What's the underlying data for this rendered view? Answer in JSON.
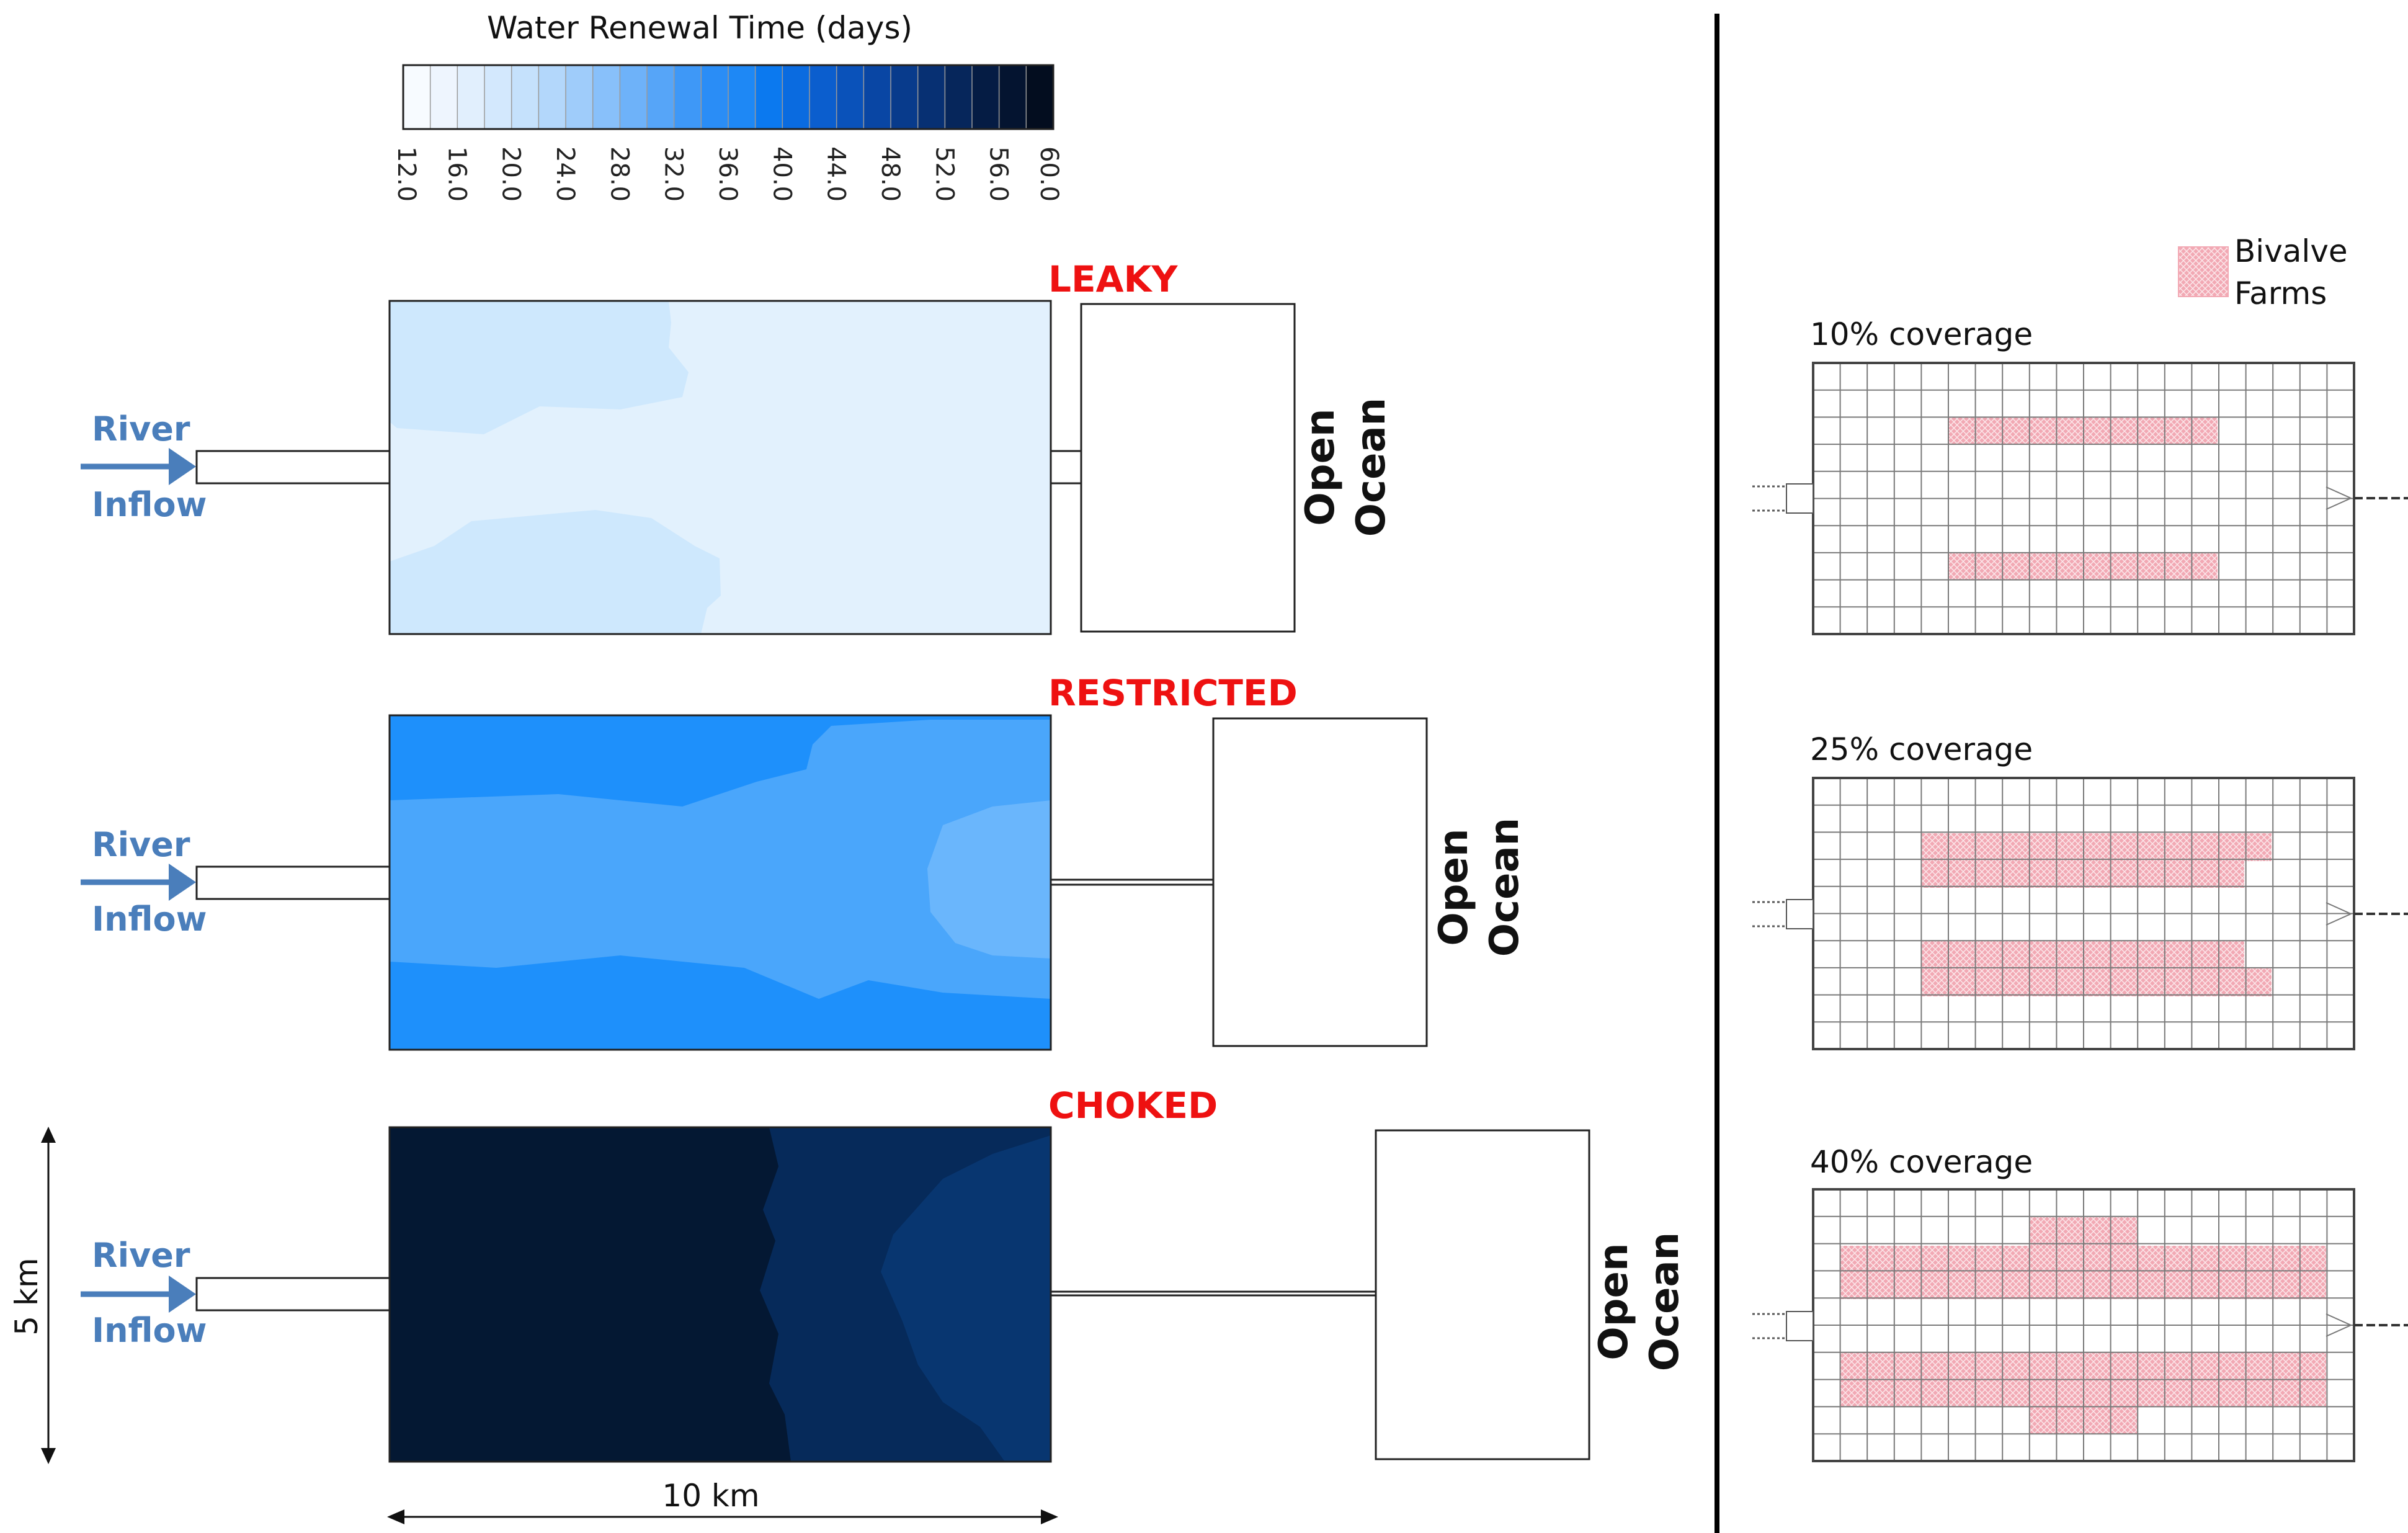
{
  "colorbar": {
    "title": "Water Renewal Time (days)",
    "ticks": [
      "12.0",
      "16.0",
      "20.0",
      "24.0",
      "28.0",
      "32.0",
      "36.0",
      "40.0",
      "44.0",
      "48.0",
      "52.0",
      "56.0",
      "60.0"
    ],
    "colors": [
      "#f7fbff",
      "#eef5fe",
      "#e1effd",
      "#d3e8fd",
      "#c5e1fc",
      "#b3d7fb",
      "#9fccfa",
      "#88c0fa",
      "#6eb2f9",
      "#56a5f8",
      "#3e98f7",
      "#2a8df6",
      "#1e88f5",
      "#0b79ef",
      "#0a6be0",
      "#0b5ece",
      "#0a52ba",
      "#0946a4",
      "#083b8c",
      "#073073",
      "#06265b",
      "#051c44",
      "#041430",
      "#030d1f"
    ]
  },
  "scenarios": [
    {
      "name": "LEAKY",
      "river": "River",
      "inflow": "Inflow",
      "ocean_line1": "Open",
      "ocean_line2": "Ocean",
      "color_main": "#e2f1fd",
      "color_secondary": "#cee8fd"
    },
    {
      "name": "RESTRICTED",
      "river": "River",
      "inflow": "Inflow",
      "ocean_line1": "Open",
      "ocean_line2": "Ocean",
      "color_main": "#1e90fb",
      "color_secondary": "#4aa6fb",
      "color_tertiary": "#6ab6fc"
    },
    {
      "name": "CHOKED",
      "river": "River",
      "inflow": "Inflow",
      "ocean_line1": "Open",
      "ocean_line2": "Ocean",
      "color_main": "#041833",
      "color_secondary": "#062a5a",
      "color_tertiary": "#083670"
    }
  ],
  "scale": {
    "height_label": "5 km",
    "width_label": "10 km"
  },
  "farms": {
    "legend_line1": "Bivalve",
    "legend_line2": "Farms",
    "fill_color": "#f2a9b4",
    "coverages": [
      "10% coverage",
      "25% coverage",
      "40% coverage"
    ]
  }
}
